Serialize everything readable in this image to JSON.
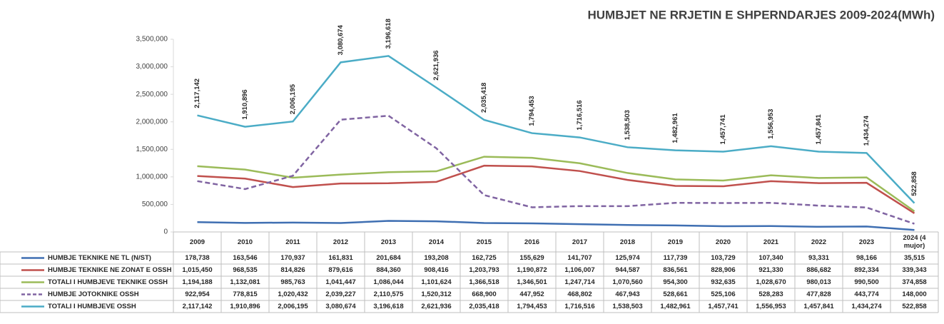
{
  "chart_data": {
    "type": "line",
    "title": "HUMBJET NE RRJETIN E SHPERNDARJES 2009-2024(MWh)",
    "categories": [
      "2009",
      "2010",
      "2011",
      "2012",
      "2013",
      "2014",
      "2015",
      "2016",
      "2017",
      "2018",
      "2019",
      "2020",
      "2021",
      "2022",
      "2023",
      "2024 (4 mujor)"
    ],
    "ylim": [
      0,
      3500000
    ],
    "yticks": [
      0,
      {
        "value": 500000,
        "label": "500,000"
      },
      {
        "value": 1000000,
        "label": "1,000,000"
      },
      {
        "value": 1500000,
        "label": "1,500,000"
      },
      {
        "value": 2000000,
        "label": "2,000,000"
      },
      {
        "value": 2500000,
        "label": "2,500,000"
      },
      {
        "value": 3000000,
        "label": "3,000,000"
      },
      {
        "value": 3500000,
        "label": "3,500,000"
      }
    ],
    "grid": false,
    "series": [
      {
        "name": "HUMBJE TEKNIKE NE TL (N/ST)",
        "color": "#3f6fb2",
        "values": [
          178738,
          163546,
          170937,
          161831,
          201684,
          193208,
          162725,
          155629,
          141707,
          125974,
          117739,
          103729,
          107340,
          93331,
          98166,
          35515
        ],
        "value_labels": [
          "178,738",
          "163,546",
          "170,937",
          "161,831",
          "201,684",
          "193,208",
          "162,725",
          "155,629",
          "141,707",
          "125,974",
          "117,739",
          "103,729",
          "107,340",
          "93,331",
          "98,166",
          "35,515"
        ]
      },
      {
        "name": "HUMBJE TEKNIKE NE ZONAT E OSSH",
        "color": "#c0504d",
        "values": [
          1015450,
          968535,
          814826,
          879616,
          884360,
          908416,
          1203793,
          1190872,
          1106007,
          944587,
          836561,
          828906,
          921330,
          886682,
          892334,
          339343
        ],
        "value_labels": [
          "1,015,450",
          "968,535",
          "814,826",
          "879,616",
          "884,360",
          "908,416",
          "1,203,793",
          "1,190,872",
          "1,106,007",
          "944,587",
          "836,561",
          "828,906",
          "921,330",
          "886,682",
          "892,334",
          "339,343"
        ]
      },
      {
        "name": "TOTALI I HUMBJEVE TEKNIKE OSSH",
        "color": "#9bbb59",
        "values": [
          1194188,
          1132081,
          985763,
          1041447,
          1086044,
          1101624,
          1366518,
          1346501,
          1247714,
          1070560,
          954300,
          932635,
          1028670,
          980013,
          990500,
          374858
        ],
        "value_labels": [
          "1,194,188",
          "1,132,081",
          "985,763",
          "1,041,447",
          "1,086,044",
          "1,101,624",
          "1,366,518",
          "1,346,501",
          "1,247,714",
          "1,070,560",
          "954,300",
          "932,635",
          "1,028,670",
          "980,013",
          "990,500",
          "374,858"
        ]
      },
      {
        "name": "HUMBJE JOTOKNIKE OSSH",
        "color": "#8064a2",
        "dashed": true,
        "values": [
          922954,
          778815,
          1020432,
          2039227,
          2110575,
          1520312,
          668900,
          447952,
          468802,
          467943,
          528661,
          525106,
          528283,
          477828,
          443774,
          148000
        ],
        "value_labels": [
          "922,954",
          "778,815",
          "1,020,432",
          "2,039,227",
          "2,110,575",
          "1,520,312",
          "668,900",
          "447,952",
          "468,802",
          "467,943",
          "528,661",
          "525,106",
          "528,283",
          "477,828",
          "443,774",
          "148,000"
        ]
      },
      {
        "name": "TOTALI I HUMBJEVE OSSH",
        "color": "#4bacc6",
        "data_labels": true,
        "values": [
          2117142,
          1910896,
          2006195,
          3080674,
          3196618,
          2621936,
          2035418,
          1794453,
          1716516,
          1538503,
          1482961,
          1457741,
          1556953,
          1457841,
          1434274,
          522858
        ],
        "value_labels": [
          "2,117,142",
          "1,910,896",
          "2,006,195",
          "3,080,674",
          "3,196,618",
          "2,621,936",
          "2,035,418",
          "1,794,453",
          "1,716,516",
          "1,538,503",
          "1,482,961",
          "1,457,741",
          "1,556,953",
          "1,457,841",
          "1,434,274",
          "522,858"
        ]
      }
    ]
  }
}
